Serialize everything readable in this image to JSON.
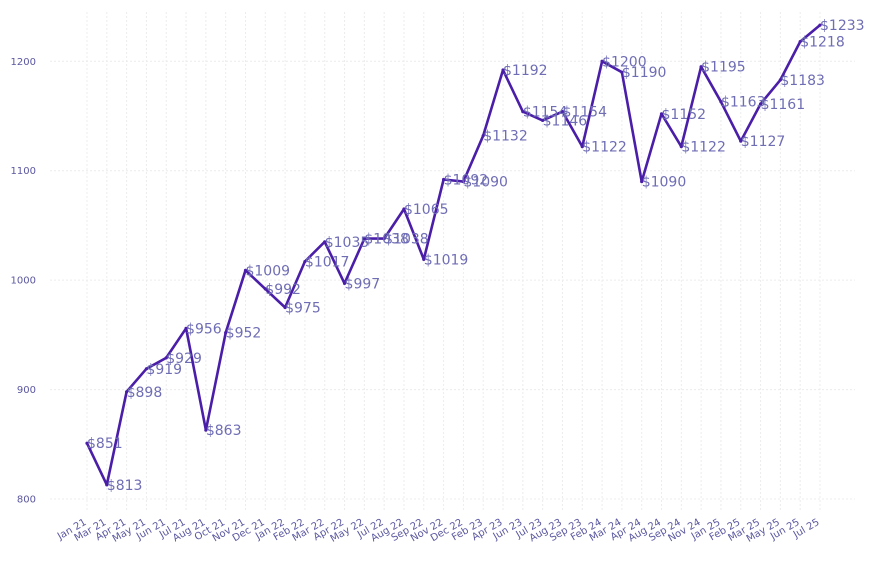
{
  "chart_data": {
    "type": "line",
    "title": "",
    "xlabel": "",
    "ylabel": "",
    "ylim": [
      790,
      1245
    ],
    "yticks": [
      800,
      900,
      1000,
      1100,
      1200
    ],
    "grid": true,
    "legend": "none",
    "colors": {
      "line": "#4a1ea8",
      "label": "#6f6db4",
      "tick": "#5a57a0",
      "grid": "#ececec"
    },
    "label_prefix": "$",
    "categories": [
      "Jan 21",
      "Mar 21",
      "Apr 21",
      "May 21",
      "Jun 21",
      "Jul 21",
      "Aug 21",
      "Oct 21",
      "Nov 21",
      "Dec 21",
      "Jan 22",
      "Feb 22",
      "Mar 22",
      "Apr 22",
      "May 22",
      "Jul 22",
      "Aug 22",
      "Sep 22",
      "Nov 22",
      "Dec 22",
      "Feb 23",
      "Apr 23",
      "Jun 23",
      "Jul 23",
      "Aug 23",
      "Sep 23",
      "Feb 24",
      "Mar 24",
      "Apr 24",
      "Aug 24",
      "Sep 24",
      "Nov 24",
      "Jan 25",
      "Feb 25",
      "Mar 25",
      "May 25",
      "Jun 25",
      "Jul 25"
    ],
    "series": [
      {
        "values": [
          851,
          813,
          898,
          919,
          929,
          956,
          863,
          952,
          1009,
          992,
          975,
          1017,
          1035,
          997,
          1038,
          1038,
          1065,
          1019,
          1092,
          1090,
          1132,
          1192,
          1154,
          1146,
          1154,
          1122,
          1200,
          1190,
          1090,
          1152,
          1122,
          1195,
          1163,
          1127,
          1161,
          1183,
          1218,
          1233
        ]
      }
    ]
  }
}
